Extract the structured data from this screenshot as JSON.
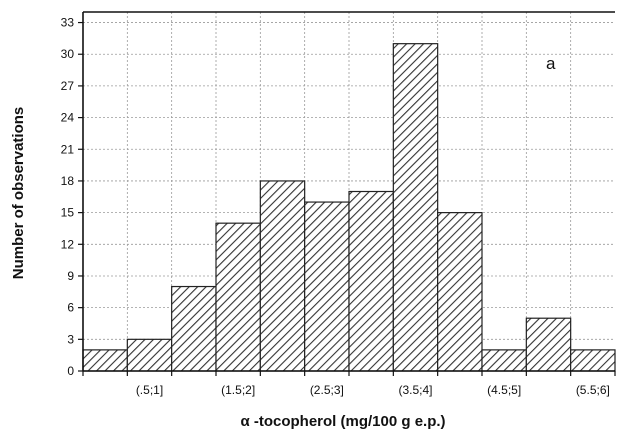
{
  "chart_data": {
    "type": "bar",
    "title": "",
    "panel_label": "a",
    "xlabel": "α -tocopherol (mg/100 g e.p.)",
    "ylabel": "Number of observations",
    "ylim": [
      0,
      34
    ],
    "yticks": [
      0,
      3,
      6,
      9,
      12,
      15,
      18,
      21,
      24,
      27,
      30,
      33
    ],
    "grid": true,
    "legend": "none",
    "bins": [
      "(0;.5]",
      "(.5;1]",
      "(1;1.5]",
      "(1.5;2]",
      "(2;2.5]",
      "(2.5;3]",
      "(3;3.5]",
      "(3.5;4]",
      "(4;4.5]",
      "(4.5;5]",
      "(5;5.5]",
      "(5.5;6]"
    ],
    "values": [
      2,
      3,
      8,
      14,
      18,
      16,
      17,
      31,
      15,
      2,
      5,
      2
    ],
    "xtick_labels": [
      {
        "bin_index": 1,
        "label": "(.5;1]"
      },
      {
        "bin_index": 3,
        "label": "(1.5;2]"
      },
      {
        "bin_index": 5,
        "label": "(2.5;3]"
      },
      {
        "bin_index": 7,
        "label": "(3.5;4]"
      },
      {
        "bin_index": 9,
        "label": "(4.5;5]"
      },
      {
        "bin_index": 11,
        "label": "(5.5;6]"
      }
    ],
    "colors": {
      "bar_fill": "#ffffff",
      "hatch": "#333333",
      "bar_stroke": "#222222",
      "grid": "#9a9a9a",
      "axis": "#111111"
    }
  }
}
